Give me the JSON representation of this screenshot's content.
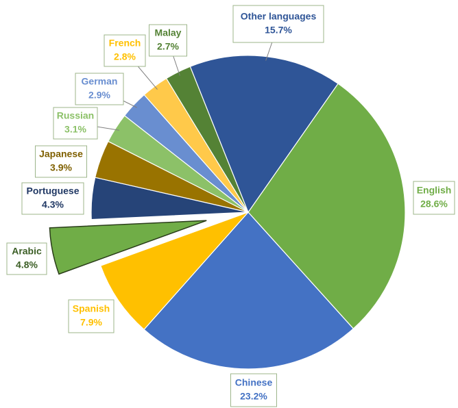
{
  "chart_data": {
    "type": "pie",
    "categories": [
      "English",
      "Chinese",
      "Spanish",
      "Arabic",
      "Portuguese",
      "Japanese",
      "Russian",
      "German",
      "French",
      "Malay",
      "Other languages"
    ],
    "values": [
      28.6,
      23.2,
      7.9,
      4.8,
      4.3,
      3.9,
      3.1,
      2.9,
      2.8,
      2.7,
      15.7
    ],
    "value_labels": [
      "28.6%",
      "23.2%",
      "7.9%",
      "4.8%",
      "4.3%",
      "3.9%",
      "3.1%",
      "2.9%",
      "2.8%",
      "2.7%",
      "15.7%"
    ],
    "colors": [
      "#70ad47",
      "#4472c4",
      "#ffc000",
      "#70ad47",
      "#264478",
      "#997300",
      "#8cc168",
      "#698ed0",
      "#ffc94a",
      "#548235",
      "#2f5597"
    ],
    "label_colors": [
      "#70ad47",
      "#4472c4",
      "#ffc000",
      "#3b5e25",
      "#203864",
      "#7f6000",
      "#8cc168",
      "#698ed0",
      "#ffc000",
      "#548235",
      "#2f5597"
    ]
  }
}
